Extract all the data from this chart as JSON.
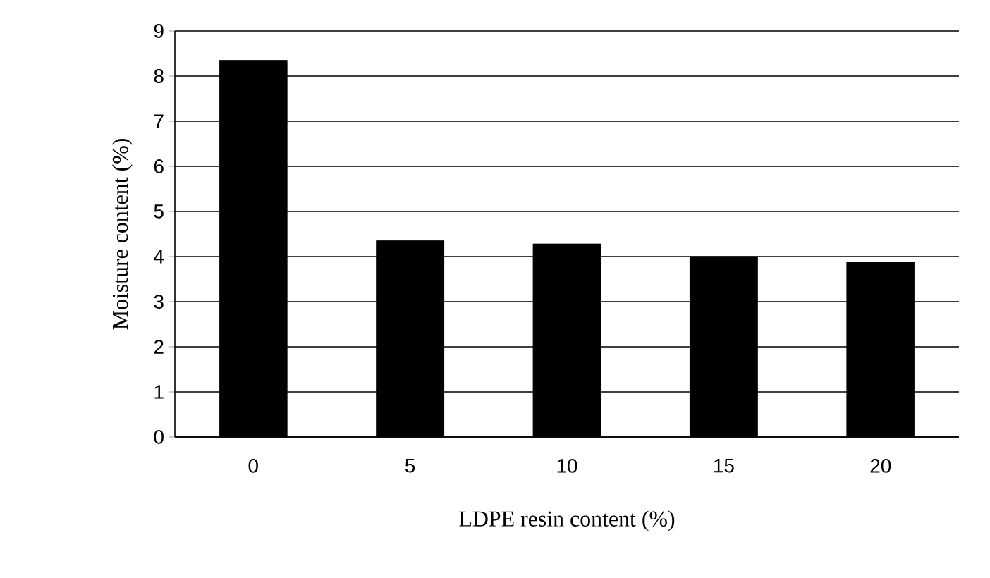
{
  "chart_data": {
    "type": "bar",
    "xlabel": "LDPE resin content (%)",
    "ylabel": "Moisture content (%)",
    "categories": [
      "0",
      "5",
      "10",
      "15",
      "20"
    ],
    "values": [
      8.35,
      4.35,
      4.28,
      4.0,
      3.88
    ],
    "color": "#000000",
    "ylim": [
      0,
      9
    ],
    "yticks": [
      0,
      1,
      2,
      3,
      4,
      5,
      6,
      7,
      8,
      9
    ],
    "grid": "y"
  }
}
